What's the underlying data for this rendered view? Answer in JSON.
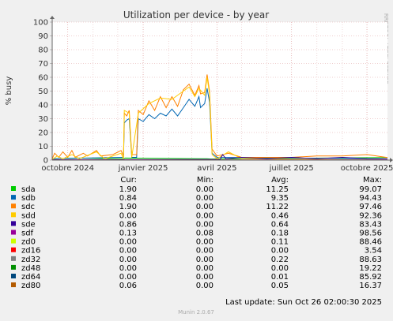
{
  "chart_data": {
    "type": "line",
    "title": "Utilization per device - by year",
    "ylabel": "% busy",
    "xlabel": "",
    "ylim": [
      0,
      100
    ],
    "yticks": [
      0,
      10,
      20,
      30,
      40,
      50,
      60,
      70,
      80,
      90,
      100
    ],
    "xticks": [
      {
        "label": "octobre 2024",
        "x": "2024-10-01"
      },
      {
        "label": "janvier 2025",
        "x": "2025-01-01"
      },
      {
        "label": "avril 2025",
        "x": "2025-04-01"
      },
      {
        "label": "juillet 2025",
        "x": "2025-07-01"
      },
      {
        "label": "octobre 2025",
        "x": "2025-10-01"
      }
    ],
    "xrange": [
      "2024-09-12",
      "2025-10-26"
    ],
    "grid": true,
    "legend_position": "bottom",
    "watermark": "RRDTOOL / TOBI OETIKER",
    "footer": "Munin 2.0.67",
    "last_update": "Last update: Sun Oct 26 02:00:30 2025",
    "column_headers": [
      "Cur:",
      "Min:",
      "Avg:",
      "Max:"
    ],
    "series": [
      {
        "name": "sda",
        "color": "#00cc00",
        "cur": "1.90",
        "min": "0.00",
        "avg": "11.25",
        "max": "99.07",
        "points": [
          [
            "2024-09-12",
            1
          ],
          [
            "2024-10-15",
            1.5
          ],
          [
            "2024-12-08",
            1
          ],
          [
            "2024-12-10",
            1.5
          ],
          [
            "2025-03-20",
            1
          ],
          [
            "2025-03-25",
            0.8
          ],
          [
            "2025-10-26",
            1.9
          ]
        ]
      },
      {
        "name": "sdb",
        "color": "#0066b3",
        "cur": "0.84",
        "min": "0.00",
        "avg": "9.35",
        "max": "94.43",
        "points": [
          [
            "2024-09-12",
            1
          ],
          [
            "2024-12-06",
            2
          ],
          [
            "2024-12-08",
            2
          ],
          [
            "2024-12-09",
            27
          ],
          [
            "2024-12-12",
            29
          ],
          [
            "2024-12-15",
            30
          ],
          [
            "2024-12-18",
            2
          ],
          [
            "2024-12-24",
            2
          ],
          [
            "2024-12-26",
            30
          ],
          [
            "2025-01-01",
            28
          ],
          [
            "2025-01-08",
            33
          ],
          [
            "2025-01-15",
            30
          ],
          [
            "2025-01-22",
            34
          ],
          [
            "2025-01-29",
            32
          ],
          [
            "2025-02-05",
            37
          ],
          [
            "2025-02-12",
            32
          ],
          [
            "2025-02-19",
            38
          ],
          [
            "2025-02-26",
            44
          ],
          [
            "2025-03-05",
            39
          ],
          [
            "2025-03-10",
            46
          ],
          [
            "2025-03-12",
            38
          ],
          [
            "2025-03-17",
            41
          ],
          [
            "2025-03-20",
            52
          ],
          [
            "2025-03-23",
            42
          ],
          [
            "2025-03-26",
            5
          ],
          [
            "2025-04-01",
            2
          ],
          [
            "2025-10-26",
            0.84
          ]
        ]
      },
      {
        "name": "sdc",
        "color": "#ff8000",
        "cur": "1.90",
        "min": "0.00",
        "avg": "11.22",
        "max": "97.46",
        "points": [
          [
            "2024-09-12",
            1
          ],
          [
            "2024-09-15",
            5
          ],
          [
            "2024-09-20",
            2
          ],
          [
            "2024-09-25",
            6
          ],
          [
            "2024-10-01",
            2
          ],
          [
            "2024-10-06",
            7
          ],
          [
            "2024-10-10",
            2
          ],
          [
            "2024-10-20",
            5
          ],
          [
            "2024-10-25",
            3
          ],
          [
            "2024-11-05",
            7
          ],
          [
            "2024-11-10",
            3
          ],
          [
            "2024-11-25",
            4
          ],
          [
            "2024-12-05",
            7
          ],
          [
            "2024-12-08",
            3
          ],
          [
            "2024-12-09",
            34
          ],
          [
            "2024-12-12",
            32
          ],
          [
            "2024-12-15",
            36
          ],
          [
            "2024-12-18",
            4
          ],
          [
            "2024-12-24",
            4
          ],
          [
            "2024-12-26",
            36
          ],
          [
            "2025-01-01",
            33
          ],
          [
            "2025-01-08",
            43
          ],
          [
            "2025-01-15",
            36
          ],
          [
            "2025-01-22",
            46
          ],
          [
            "2025-01-29",
            38
          ],
          [
            "2025-02-05",
            46
          ],
          [
            "2025-02-12",
            39
          ],
          [
            "2025-02-19",
            51
          ],
          [
            "2025-02-26",
            55
          ],
          [
            "2025-03-05",
            47
          ],
          [
            "2025-03-10",
            54
          ],
          [
            "2025-03-12",
            48
          ],
          [
            "2025-03-17",
            49
          ],
          [
            "2025-03-20",
            62
          ],
          [
            "2025-03-23",
            50
          ],
          [
            "2025-03-26",
            8
          ],
          [
            "2025-04-01",
            3
          ],
          [
            "2025-04-15",
            5
          ],
          [
            "2025-05-01",
            2
          ],
          [
            "2025-06-01",
            2
          ],
          [
            "2025-07-01",
            2
          ],
          [
            "2025-08-01",
            3
          ],
          [
            "2025-09-01",
            3
          ],
          [
            "2025-10-01",
            4
          ],
          [
            "2025-10-26",
            1.9
          ]
        ]
      },
      {
        "name": "sdd",
        "color": "#ffcc00",
        "cur": "0.00",
        "min": "0.00",
        "avg": "0.46",
        "max": "92.36",
        "points": [
          [
            "2024-09-12",
            0.5
          ],
          [
            "2024-09-18",
            3
          ],
          [
            "2024-09-25",
            1
          ],
          [
            "2024-10-06",
            4
          ],
          [
            "2024-10-15",
            1
          ],
          [
            "2024-11-05",
            6
          ],
          [
            "2024-11-15",
            1
          ],
          [
            "2024-12-05",
            5
          ],
          [
            "2024-12-08",
            1
          ],
          [
            "2024-12-09",
            36
          ],
          [
            "2024-12-15",
            34
          ],
          [
            "2024-12-18",
            2
          ],
          [
            "2024-12-26",
            34
          ],
          [
            "2025-01-08",
            41
          ],
          [
            "2025-01-22",
            45
          ],
          [
            "2025-02-05",
            44
          ],
          [
            "2025-02-19",
            50
          ],
          [
            "2025-02-26",
            53
          ],
          [
            "2025-03-05",
            46
          ],
          [
            "2025-03-10",
            52
          ],
          [
            "2025-03-17",
            47
          ],
          [
            "2025-03-20",
            60
          ],
          [
            "2025-03-23",
            48
          ],
          [
            "2025-03-26",
            4
          ],
          [
            "2025-04-01",
            1
          ],
          [
            "2025-04-15",
            6
          ],
          [
            "2025-05-01",
            1
          ],
          [
            "2025-10-26",
            0
          ]
        ]
      },
      {
        "name": "sde",
        "color": "#330099",
        "cur": "0.86",
        "min": "0.00",
        "avg": "0.64",
        "max": "83.43",
        "points": [
          [
            "2024-09-12",
            0.3
          ],
          [
            "2025-04-05",
            0.5
          ],
          [
            "2025-04-08",
            4
          ],
          [
            "2025-04-12",
            1
          ],
          [
            "2025-05-01",
            2
          ],
          [
            "2025-06-01",
            1
          ],
          [
            "2025-07-01",
            2
          ],
          [
            "2025-08-01",
            1
          ],
          [
            "2025-09-01",
            2
          ],
          [
            "2025-10-01",
            1
          ],
          [
            "2025-10-26",
            0.86
          ]
        ]
      },
      {
        "name": "sdf",
        "color": "#990099",
        "cur": "0.13",
        "min": "0.08",
        "avg": "0.18",
        "max": "98.56",
        "points": [
          [
            "2024-09-12",
            0.2
          ],
          [
            "2025-10-26",
            0.13
          ]
        ]
      },
      {
        "name": "zd0",
        "color": "#ccff00",
        "cur": "0.00",
        "min": "0.00",
        "avg": "0.11",
        "max": "88.46",
        "points": [
          [
            "2024-09-12",
            0
          ],
          [
            "2025-10-26",
            0
          ]
        ]
      },
      {
        "name": "zd16",
        "color": "#ff0000",
        "cur": "0.00",
        "min": "0.00",
        "avg": "0.00",
        "max": "3.54",
        "points": [
          [
            "2024-09-12",
            0
          ],
          [
            "2025-10-26",
            0
          ]
        ]
      },
      {
        "name": "zd32",
        "color": "#808080",
        "cur": "0.00",
        "min": "0.00",
        "avg": "0.22",
        "max": "88.63",
        "points": [
          [
            "2024-09-12",
            0
          ],
          [
            "2025-10-26",
            0
          ]
        ]
      },
      {
        "name": "zd48",
        "color": "#008f00",
        "cur": "0.00",
        "min": "0.00",
        "avg": "0.00",
        "max": "19.22",
        "points": [
          [
            "2024-09-12",
            0
          ],
          [
            "2025-10-26",
            0
          ]
        ]
      },
      {
        "name": "zd64",
        "color": "#00487d",
        "cur": "0.00",
        "min": "0.00",
        "avg": "0.01",
        "max": "85.92",
        "points": [
          [
            "2024-09-12",
            0
          ],
          [
            "2025-10-26",
            0
          ]
        ]
      },
      {
        "name": "zd80",
        "color": "#b35a00",
        "cur": "0.06",
        "min": "0.00",
        "avg": "0.05",
        "max": "16.37",
        "points": [
          [
            "2024-09-12",
            0.05
          ],
          [
            "2025-10-26",
            0.06
          ]
        ]
      }
    ]
  }
}
